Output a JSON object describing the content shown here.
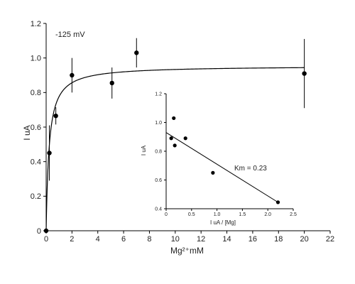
{
  "chart_data": [
    {
      "type": "scatter",
      "annotation": "-125 mV",
      "xlabel": "Mg²⁺mM",
      "ylabel": "I uA",
      "xlim": [
        0,
        22
      ],
      "ylim": [
        0,
        1.2
      ],
      "x_ticks": [
        0,
        2,
        4,
        6,
        8,
        10,
        12,
        14,
        16,
        18,
        20,
        22
      ],
      "y_ticks": [
        0,
        0.2,
        0.4,
        0.6,
        0.8,
        1.0,
        1.2
      ],
      "x_tick_labels": [
        "0",
        "2",
        "4",
        "6",
        "8",
        "10",
        "12",
        "14",
        "16",
        "18",
        "20",
        "22"
      ],
      "y_tick_labels": [
        "0",
        "0.2",
        "0.4",
        "0.6",
        "0.8",
        "1.0",
        "1.2"
      ],
      "grid": false,
      "points": [
        {
          "x": 0,
          "y": 0,
          "err": 0
        },
        {
          "x": 0.25,
          "y": 0.45,
          "err": 0.16
        },
        {
          "x": 0.75,
          "y": 0.665,
          "err": 0.05
        },
        {
          "x": 2,
          "y": 0.9,
          "err": 0.1
        },
        {
          "x": 5.1,
          "y": 0.855,
          "err": 0.09
        },
        {
          "x": 7,
          "y": 1.03,
          "err": 0.085
        },
        {
          "x": 20,
          "y": 0.91,
          "err": 0.2
        }
      ],
      "fit": {
        "vmax": 0.955,
        "km": 0.23
      }
    },
    {
      "type": "scatter",
      "annotation": "Km = 0.23",
      "xlabel": "I uA / [Mg]",
      "ylabel": "I uA",
      "xlim": [
        0,
        2.5
      ],
      "ylim": [
        0.4,
        1.2
      ],
      "x_ticks": [
        0,
        0.5,
        1.0,
        1.5,
        2.0,
        2.5
      ],
      "y_ticks": [
        0.4,
        0.6,
        0.8,
        1.0,
        1.2
      ],
      "x_tick_labels": [
        "0",
        "0.5",
        "1.0",
        "1.5",
        "2.0",
        "2.5"
      ],
      "y_tick_labels": [
        "0.4",
        "0.6",
        "0.8",
        "1.0",
        "1.2"
      ],
      "grid": false,
      "points": [
        {
          "x": 0.1,
          "y": 0.89
        },
        {
          "x": 0.15,
          "y": 1.03
        },
        {
          "x": 0.17,
          "y": 0.84
        },
        {
          "x": 0.38,
          "y": 0.89
        },
        {
          "x": 0.92,
          "y": 0.65
        },
        {
          "x": 2.2,
          "y": 0.445
        }
      ],
      "fit_line": {
        "x": [
          0,
          2.2
        ],
        "y": [
          0.93,
          0.445
        ]
      }
    }
  ]
}
